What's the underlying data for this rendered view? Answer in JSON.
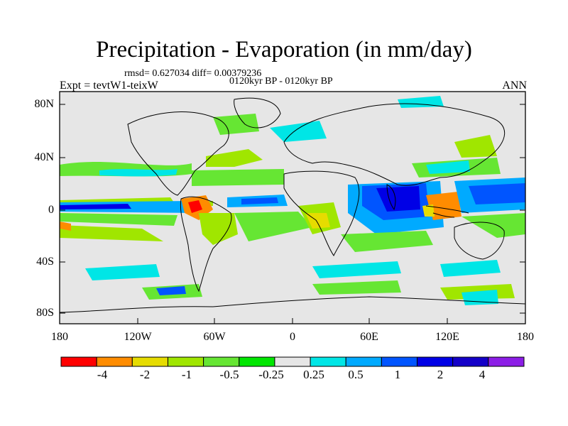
{
  "title": "Precipitation - Evaporation (in mm/day)",
  "stats_line": "rmsd= 0.627034 diff= 0.00379236",
  "period_line": "0120kyr BP - 0120kyr BP",
  "experiment": "Expt = tevtW1-teixW",
  "season": "ANN",
  "lat_labels": [
    "80N",
    "40N",
    "0",
    "40S",
    "80S"
  ],
  "lon_labels": [
    "180",
    "120W",
    "60W",
    "0",
    "60E",
    "120E",
    "180"
  ],
  "colorbar": {
    "colors": [
      "#ff0000",
      "#ff8c00",
      "#e6dc00",
      "#a0e600",
      "#66e633",
      "#00e600",
      "#e6e6e6",
      "#00e6e6",
      "#00aaff",
      "#0055ff",
      "#0000e6",
      "#1400c8",
      "#8c1ee6"
    ],
    "labels": [
      "-4",
      "-2",
      "-1",
      "-0.5",
      "-0.25",
      "0.25",
      "0.5",
      "1",
      "2",
      "4"
    ]
  }
}
